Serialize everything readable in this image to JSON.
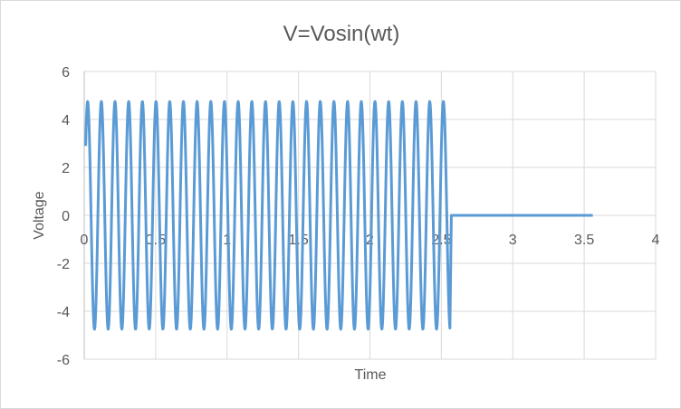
{
  "chart_data": {
    "type": "line",
    "title": "V=Vosin(wt)",
    "xlabel": "Time",
    "ylabel": "Voltage",
    "xlim": [
      0,
      4
    ],
    "ylim": [
      -6,
      6
    ],
    "xticks": [
      "0",
      "0.5",
      "1",
      "1.5",
      "2",
      "2.5",
      "3",
      "3.5",
      "4"
    ],
    "yticks": [
      "6",
      "4",
      "2",
      "0",
      "-2",
      "-4",
      "-6"
    ],
    "grid": true,
    "series": [
      {
        "color": "#5b9bd5",
        "segments": [
          {
            "kind": "sine",
            "amplitude": 4.75,
            "omega": 65.6,
            "t_start": 0.01,
            "t_end": 2.56
          },
          {
            "kind": "constant",
            "value": 0,
            "t_start": 2.57,
            "t_end": 3.56
          }
        ]
      }
    ]
  }
}
